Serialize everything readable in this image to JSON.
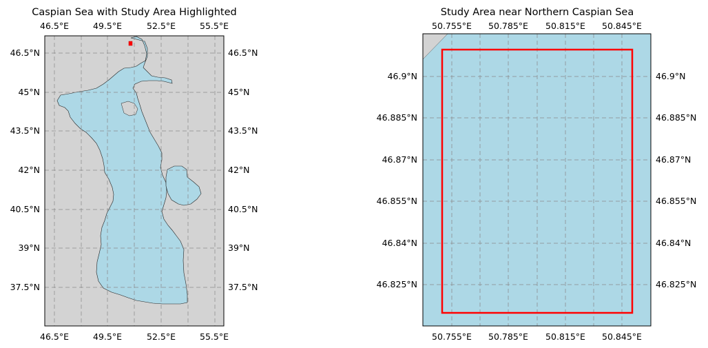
{
  "figure": {
    "left_map": {
      "title": "Caspian Sea with Study Area Highlighted",
      "lon_ticks": [
        "46.5°E",
        "49.5°E",
        "52.5°E",
        "55.5°E"
      ],
      "lat_ticks": [
        "46.5°N",
        "45°N",
        "43.5°N",
        "42°N",
        "40.5°N",
        "39°N",
        "37.5°N"
      ],
      "colors": {
        "land": "#d3d3d3",
        "water": "#add8e6",
        "highlight": "#ff0000"
      }
    },
    "right_map": {
      "title": "Study Area near Northern Caspian Sea",
      "lon_ticks": [
        "50.755°E",
        "50.785°E",
        "50.815°E",
        "50.845°E"
      ],
      "lat_ticks": [
        "46.9°N",
        "46.885°N",
        "46.87°N",
        "46.855°N",
        "46.84°N",
        "46.825°N"
      ],
      "colors": {
        "land": "#d3d3d3",
        "water": "#add8e6",
        "box": "#ff0000"
      }
    }
  },
  "chart_data": [
    {
      "type": "map",
      "title": "Caspian Sea with Study Area Highlighted",
      "lon_range": [
        45.6,
        56.3
      ],
      "lat_range": [
        36.0,
        47.1
      ],
      "lon_ticks": [
        46.5,
        49.5,
        52.5,
        55.5
      ],
      "lat_ticks": [
        46.5,
        45,
        43.5,
        42,
        40.5,
        39,
        37.5
      ],
      "study_area": {
        "lon": [
          50.75,
          50.85
        ],
        "lat": [
          46.82,
          46.91
        ]
      }
    },
    {
      "type": "map",
      "title": "Study Area near Northern Caspian Sea",
      "lon_range": [
        50.745,
        50.865
      ],
      "lat_range": [
        46.805,
        46.915
      ],
      "lon_ticks": [
        50.755,
        50.785,
        50.815,
        50.845
      ],
      "lat_ticks": [
        46.9,
        46.885,
        46.87,
        46.855,
        46.84,
        46.825
      ],
      "study_area": {
        "lon": [
          50.755,
          50.855
        ],
        "lat": [
          46.81,
          46.905
        ]
      }
    }
  ]
}
